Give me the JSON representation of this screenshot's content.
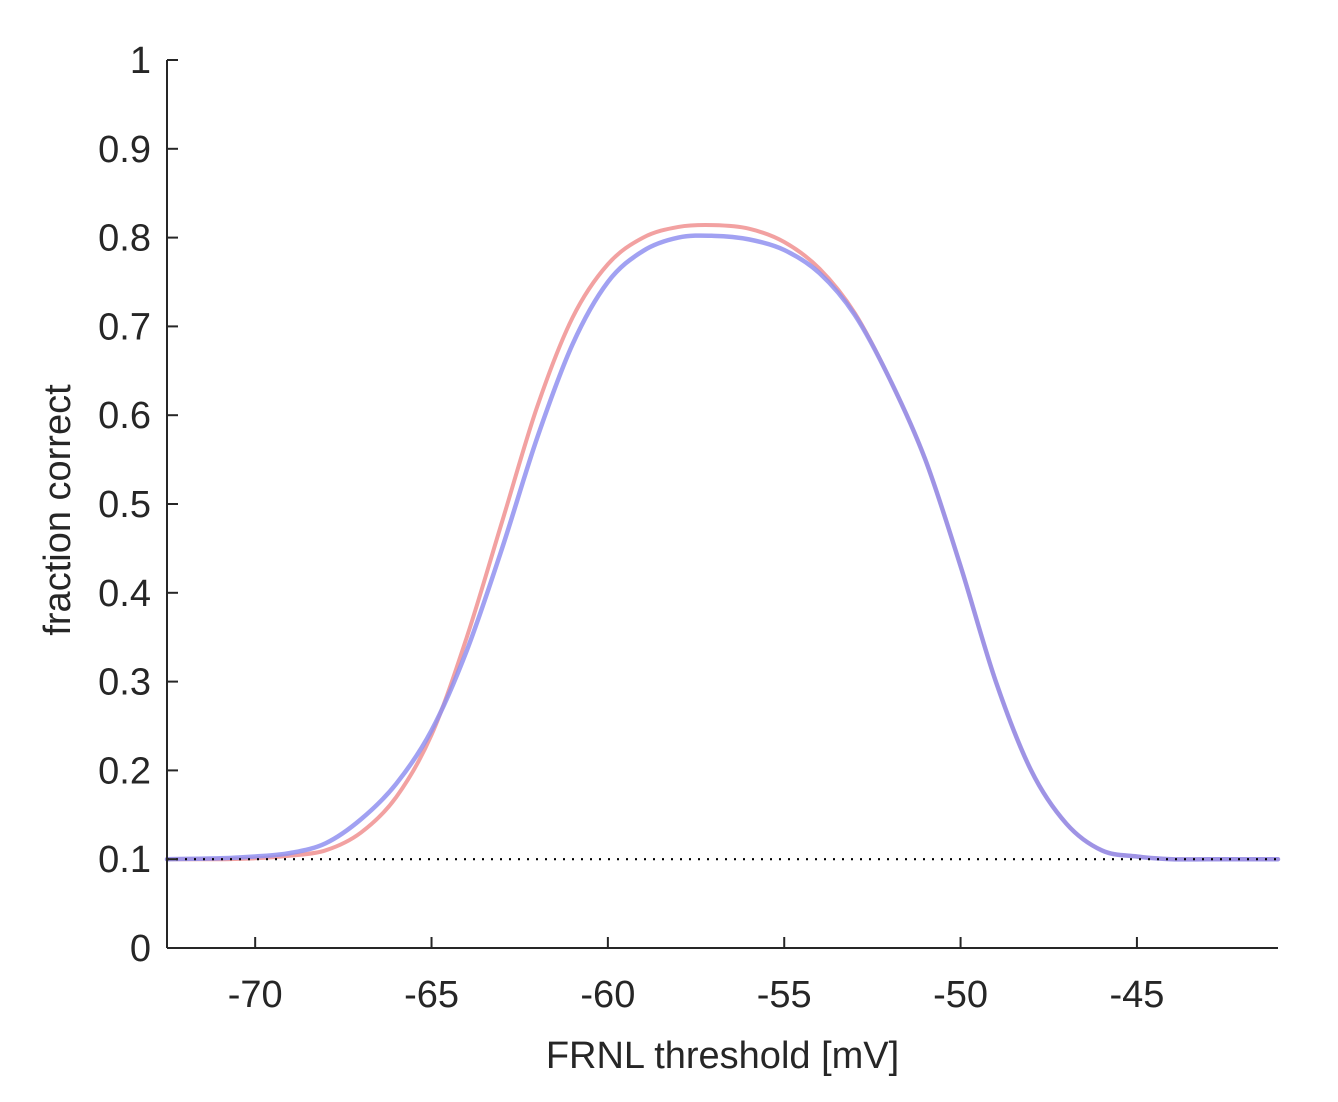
{
  "chart_data": {
    "type": "line",
    "title": "",
    "xlabel": "FRNL threshold [mV]",
    "ylabel": "fraction correct",
    "xlim": [
      -72.5,
      -41
    ],
    "ylim": [
      0,
      1
    ],
    "xticks": [
      -70,
      -65,
      -60,
      -55,
      -50,
      -45
    ],
    "xtick_labels": [
      "-70",
      "-65",
      "-60",
      "-55",
      "-50",
      "-45"
    ],
    "yticks": [
      0,
      0.1,
      0.2,
      0.3,
      0.4,
      0.5,
      0.6,
      0.7,
      0.8,
      0.9,
      1
    ],
    "ytick_labels": [
      "0",
      "0.1",
      "0.2",
      "0.3",
      "0.4",
      "0.5",
      "0.6",
      "0.7",
      "0.8",
      "0.9",
      "1"
    ],
    "grid": false,
    "reference_line": {
      "y": 0.1,
      "style": "dotted",
      "color": "#000000",
      "x_range": [
        -72.5,
        -41
      ]
    },
    "series": [
      {
        "name": "red curve",
        "color": "#f09090",
        "x": [
          -72.5,
          -71,
          -70,
          -69,
          -68,
          -67,
          -66,
          -65,
          -64,
          -63,
          -62,
          -61,
          -60,
          -59,
          -58,
          -57,
          -56,
          -55,
          -54,
          -53,
          -52,
          -51,
          -50,
          -49,
          -48,
          -47,
          -46,
          -45,
          -44,
          -43,
          -41
        ],
        "y": [
          0.1,
          0.1,
          0.101,
          0.104,
          0.11,
          0.13,
          0.17,
          0.24,
          0.35,
          0.48,
          0.61,
          0.71,
          0.77,
          0.8,
          0.812,
          0.814,
          0.81,
          0.795,
          0.765,
          0.715,
          0.64,
          0.55,
          0.43,
          0.3,
          0.2,
          0.14,
          0.11,
          0.103,
          0.1,
          0.1,
          0.1
        ]
      },
      {
        "name": "blue curve",
        "color": "#9090f0",
        "x": [
          -72.5,
          -71,
          -70,
          -69,
          -68,
          -67,
          -66,
          -65,
          -64,
          -63,
          -62,
          -61,
          -60,
          -59,
          -58,
          -57,
          -56,
          -55,
          -54,
          -53,
          -52,
          -51,
          -50,
          -49,
          -48,
          -47,
          -46,
          -45,
          -44,
          -43,
          -41
        ],
        "y": [
          0.1,
          0.101,
          0.103,
          0.107,
          0.118,
          0.145,
          0.185,
          0.245,
          0.335,
          0.45,
          0.575,
          0.68,
          0.75,
          0.785,
          0.8,
          0.802,
          0.798,
          0.786,
          0.76,
          0.713,
          0.64,
          0.55,
          0.43,
          0.3,
          0.2,
          0.14,
          0.11,
          0.103,
          0.1,
          0.1,
          0.1
        ]
      }
    ]
  }
}
